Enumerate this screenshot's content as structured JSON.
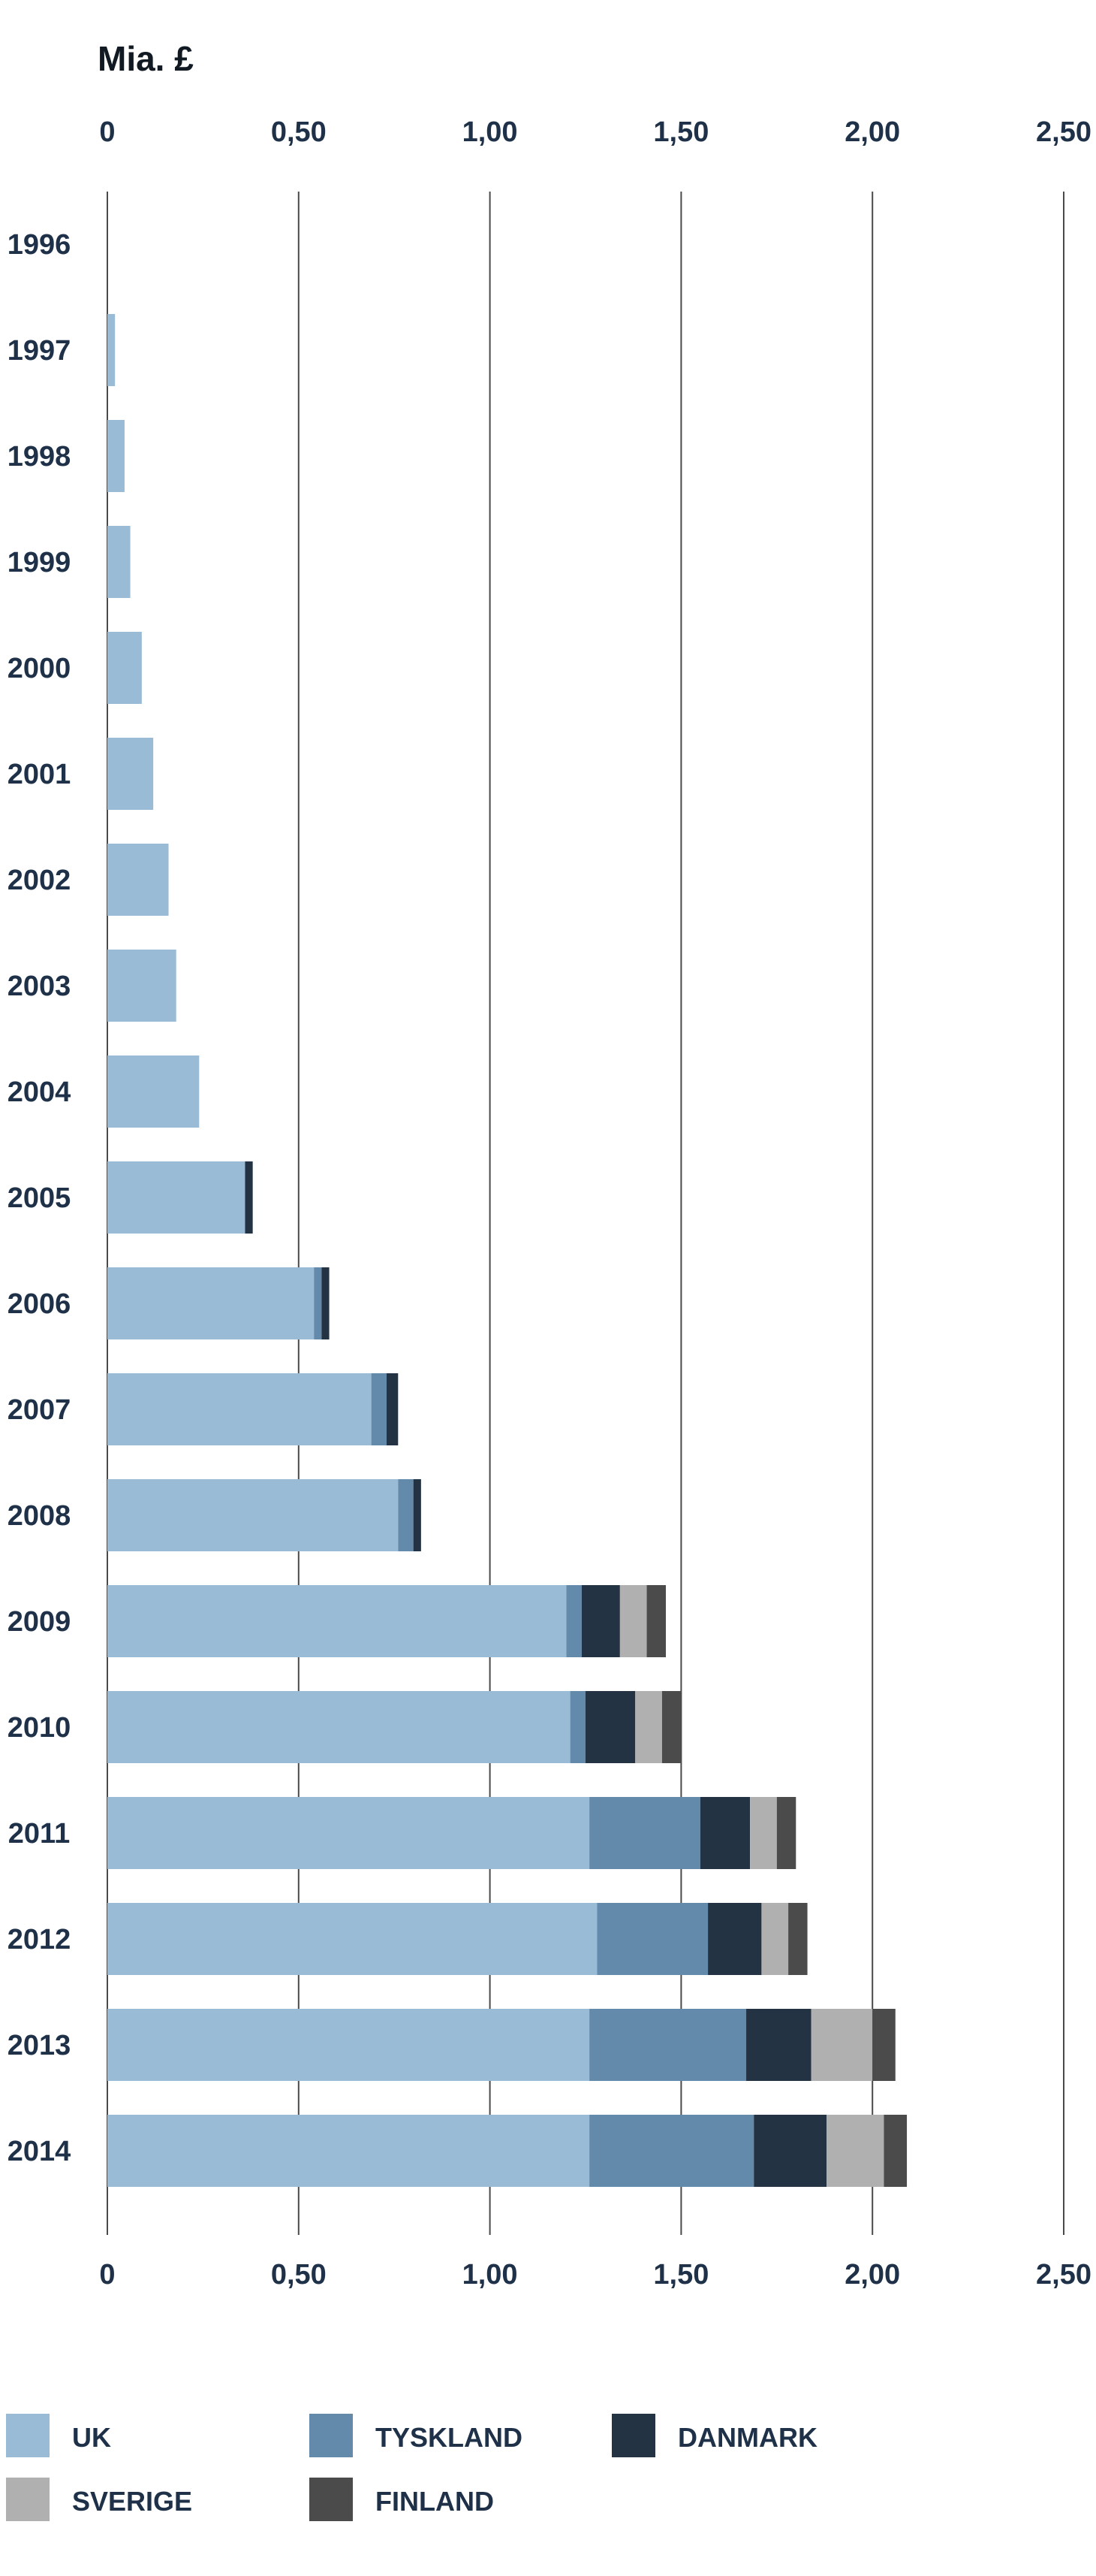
{
  "chart_data": {
    "type": "bar",
    "orientation": "horizontal",
    "stacked": true,
    "unit_label": "Mia. £",
    "categories": [
      "1996",
      "1997",
      "1998",
      "1999",
      "2000",
      "2001",
      "2002",
      "2003",
      "2004",
      "2005",
      "2006",
      "2007",
      "2008",
      "2009",
      "2010",
      "2011",
      "2012",
      "2013",
      "2014"
    ],
    "series": [
      {
        "name": "UK",
        "color": "#9abbd5",
        "values": [
          0,
          0.02,
          0.045,
          0.06,
          0.09,
          0.12,
          0.16,
          0.18,
          0.24,
          0.36,
          0.54,
          0.69,
          0.76,
          1.2,
          1.21,
          1.26,
          1.28,
          1.26,
          1.26
        ]
      },
      {
        "name": "TYSKLAND",
        "color": "#6389ab",
        "values": [
          0,
          0,
          0,
          0,
          0,
          0,
          0,
          0,
          0,
          0,
          0.02,
          0.04,
          0.04,
          0.04,
          0.04,
          0.29,
          0.29,
          0.41,
          0.43
        ]
      },
      {
        "name": "DANMARK",
        "color": "#233343",
        "values": [
          0,
          0,
          0,
          0,
          0,
          0,
          0,
          0,
          0,
          0.02,
          0.02,
          0.03,
          0.02,
          0.1,
          0.13,
          0.13,
          0.14,
          0.17,
          0.19
        ]
      },
      {
        "name": "SVERIGE",
        "color": "#b0b0b0",
        "values": [
          0,
          0,
          0,
          0,
          0,
          0,
          0,
          0,
          0,
          0,
          0,
          0,
          0,
          0.07,
          0.07,
          0.07,
          0.07,
          0.16,
          0.15
        ]
      },
      {
        "name": "FINLAND",
        "color": "#4b4b4b",
        "values": [
          0,
          0,
          0,
          0,
          0,
          0,
          0,
          0,
          0,
          0,
          0,
          0,
          0,
          0.05,
          0.05,
          0.05,
          0.05,
          0.06,
          0.06
        ]
      }
    ],
    "xlim": [
      0,
      2.5
    ],
    "x_ticks": [
      0,
      0.5,
      1.0,
      1.5,
      2.0,
      2.5
    ],
    "x_tick_labels": [
      "0",
      "0,50",
      "1,00",
      "1,50",
      "2,00",
      "2,50"
    ],
    "xlabel": "",
    "ylabel": "",
    "grid": true,
    "legend_position": "bottom"
  }
}
